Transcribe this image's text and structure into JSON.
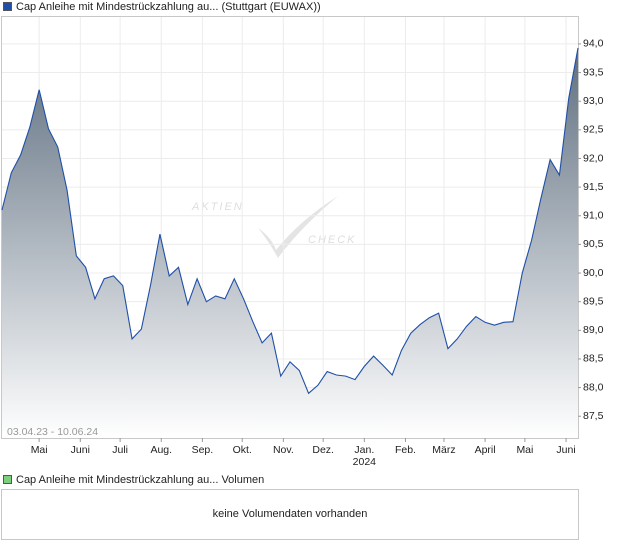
{
  "chart_data": [
    {
      "type": "line",
      "series": [
        {
          "name": "Cap Anleihe mit Mindestrückzahlung au... (Stuttgart (EUWAX))",
          "color": "#1f4fa8",
          "values": [
            91.1,
            91.75,
            92.06,
            92.55,
            93.2,
            92.52,
            92.2,
            91.45,
            90.3,
            90.1,
            89.55,
            89.9,
            89.95,
            89.78,
            88.85,
            89.02,
            89.8,
            90.68,
            89.95,
            90.1,
            89.45,
            89.9,
            89.5,
            89.6,
            89.55,
            89.9,
            89.55,
            89.15,
            88.78,
            88.95,
            88.2,
            88.45,
            88.3,
            87.9,
            88.04,
            88.28,
            88.22,
            88.2,
            88.14,
            88.37,
            88.55,
            88.39,
            88.22,
            88.65,
            88.95,
            89.1,
            89.22,
            89.3,
            88.68,
            88.85,
            89.07,
            89.24,
            89.14,
            89.09,
            89.14,
            89.15,
            90.0,
            90.57,
            91.3,
            91.98,
            91.71,
            93.05,
            93.93
          ]
        }
      ],
      "x": [
        "2023-04-03",
        "2023-04-10",
        "2023-04-17",
        "2023-04-24",
        "2023-05-01",
        "2023-05-08",
        "2023-05-15",
        "2023-05-22",
        "2023-05-29",
        "2023-06-05",
        "2023-06-12",
        "2023-06-19",
        "2023-06-26",
        "2023-07-03",
        "2023-07-10",
        "2023-07-17",
        "2023-07-24",
        "2023-07-31",
        "2023-08-07",
        "2023-08-14",
        "2023-08-21",
        "2023-08-28",
        "2023-09-04",
        "2023-09-11",
        "2023-09-18",
        "2023-09-25",
        "2023-10-02",
        "2023-10-09",
        "2023-10-16",
        "2023-10-23",
        "2023-10-30",
        "2023-11-06",
        "2023-11-13",
        "2023-11-20",
        "2023-11-27",
        "2023-12-04",
        "2023-12-11",
        "2023-12-18",
        "2023-12-25",
        "2024-01-01",
        "2024-01-08",
        "2024-01-15",
        "2024-01-22",
        "2024-01-29",
        "2024-02-05",
        "2024-02-12",
        "2024-02-19",
        "2024-02-26",
        "2024-03-04",
        "2024-03-11",
        "2024-03-18",
        "2024-03-25",
        "2024-04-01",
        "2024-04-08",
        "2024-04-15",
        "2024-04-22",
        "2024-04-29",
        "2024-05-06",
        "2024-05-13",
        "2024-05-20",
        "2024-05-27",
        "2024-06-03",
        "2024-06-10"
      ],
      "xlim": [
        "2023-04-03",
        "2024-06-10"
      ],
      "xticks": [
        {
          "value": "2023-05-01",
          "label": "Mai"
        },
        {
          "value": "2023-06-01",
          "label": "Juni"
        },
        {
          "value": "2023-07-01",
          "label": "Juli"
        },
        {
          "value": "2023-08-01",
          "label": "Aug."
        },
        {
          "value": "2023-09-01",
          "label": "Sep."
        },
        {
          "value": "2023-10-01",
          "label": "Okt."
        },
        {
          "value": "2023-11-01",
          "label": "Nov."
        },
        {
          "value": "2023-12-01",
          "label": "Dez."
        },
        {
          "value": "2024-01-01",
          "label": "Jan.",
          "year": "2024"
        },
        {
          "value": "2024-02-01",
          "label": "Feb."
        },
        {
          "value": "2024-03-01",
          "label": "März"
        },
        {
          "value": "2024-04-01",
          "label": "April"
        },
        {
          "value": "2024-05-01",
          "label": "Mai"
        },
        {
          "value": "2024-06-01",
          "label": "Juni"
        }
      ],
      "ylim": [
        87.12,
        94.47
      ],
      "yticks": [
        {
          "value": 87.5,
          "label": "87,5"
        },
        {
          "value": 88,
          "label": "88,0"
        },
        {
          "value": 88.5,
          "label": "88,5"
        },
        {
          "value": 89,
          "label": "89,0"
        },
        {
          "value": 89.5,
          "label": "89,5"
        },
        {
          "value": 90,
          "label": "90,0"
        },
        {
          "value": 90.5,
          "label": "90,5"
        },
        {
          "value": 91,
          "label": "91,0"
        },
        {
          "value": 91.5,
          "label": "91,5"
        },
        {
          "value": 92,
          "label": "92,0"
        },
        {
          "value": 92.5,
          "label": "92,5"
        },
        {
          "value": 93,
          "label": "93,0"
        },
        {
          "value": 93.5,
          "label": "93,5"
        },
        {
          "value": 94,
          "label": "94,0"
        }
      ],
      "grid": true,
      "date_range": "03.04.23 - 10.06.24",
      "watermark": [
        "AKTIEN",
        "CHECK"
      ]
    },
    {
      "type": "bar",
      "series": [
        {
          "name": "Cap Anleihe mit Mindestrückzahlung au... Volumen",
          "color": "#7ccf7c"
        }
      ],
      "message": "keine Volumendaten vorhanden"
    }
  ]
}
